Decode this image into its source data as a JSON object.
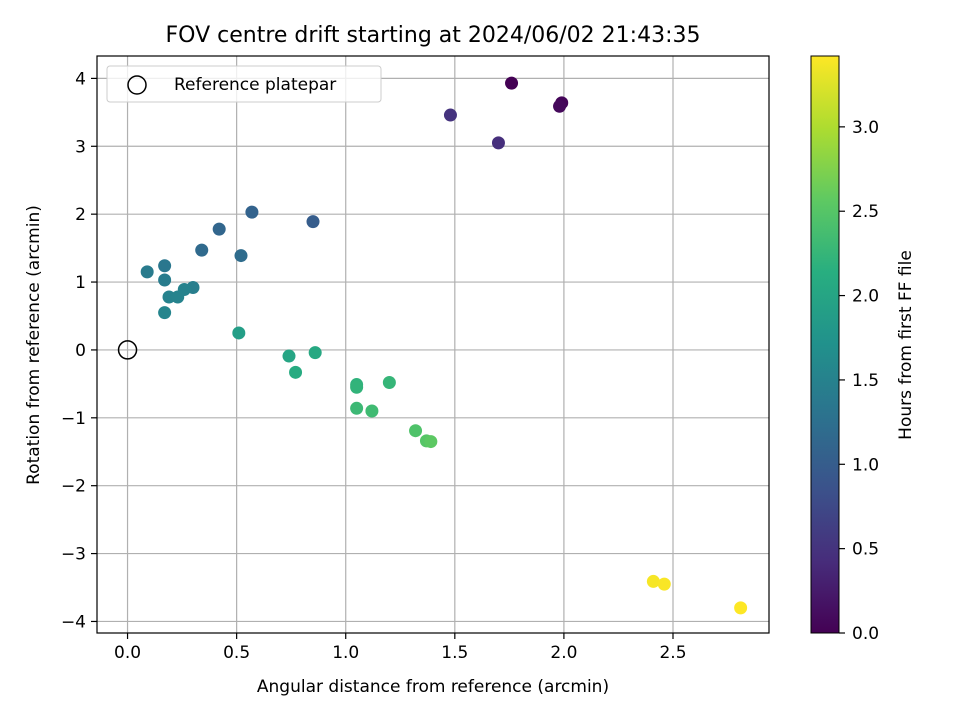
{
  "chart_data": {
    "type": "scatter",
    "title": "FOV centre drift starting at 2024/06/02 21:43:35",
    "xlabel": "Angular distance from reference (arcmin)",
    "ylabel": "Rotation from reference (arcmin)",
    "xlim": [
      -0.14,
      2.94
    ],
    "ylim": [
      -4.17,
      4.33
    ],
    "xticks": [
      0.0,
      0.5,
      1.0,
      1.5,
      2.0,
      2.5
    ],
    "xtick_labels": [
      "0.0",
      "0.5",
      "1.0",
      "1.5",
      "2.0",
      "2.5"
    ],
    "yticks": [
      -4,
      -3,
      -2,
      -1,
      0,
      1,
      2,
      3,
      4
    ],
    "ytick_labels": [
      "−4",
      "−3",
      "−2",
      "−1",
      "0",
      "1",
      "2",
      "3",
      "4"
    ],
    "grid": true,
    "legend": {
      "position": "top-left",
      "entries": [
        {
          "label": "Reference platepar",
          "marker": "open-circle"
        }
      ]
    },
    "reference_point": {
      "x": 0.0,
      "y": 0.0
    },
    "colorbar": {
      "label": "Hours from first FF file",
      "colormap": "viridis",
      "range": [
        0.0,
        3.42
      ],
      "ticks": [
        0.0,
        0.5,
        1.0,
        1.5,
        2.0,
        2.5,
        3.0
      ],
      "tick_labels": [
        "0.0",
        "0.5",
        "1.0",
        "1.5",
        "2.0",
        "2.5",
        "3.0"
      ]
    },
    "points": [
      {
        "x": 1.76,
        "y": 3.93,
        "t": 0.0
      },
      {
        "x": 1.99,
        "y": 3.64,
        "t": 0.04
      },
      {
        "x": 1.98,
        "y": 3.59,
        "t": 0.08
      },
      {
        "x": 1.7,
        "y": 3.05,
        "t": 0.45
      },
      {
        "x": 1.48,
        "y": 3.46,
        "t": 0.5
      },
      {
        "x": 0.85,
        "y": 1.89,
        "t": 1.0
      },
      {
        "x": 0.57,
        "y": 2.03,
        "t": 1.08
      },
      {
        "x": 0.42,
        "y": 1.78,
        "t": 1.12
      },
      {
        "x": 0.34,
        "y": 1.47,
        "t": 1.17
      },
      {
        "x": 0.52,
        "y": 1.39,
        "t": 1.2
      },
      {
        "x": 0.17,
        "y": 1.24,
        "t": 1.35
      },
      {
        "x": 0.09,
        "y": 1.15,
        "t": 1.4
      },
      {
        "x": 0.17,
        "y": 1.03,
        "t": 1.42
      },
      {
        "x": 0.3,
        "y": 0.92,
        "t": 1.45
      },
      {
        "x": 0.26,
        "y": 0.89,
        "t": 1.5
      },
      {
        "x": 0.19,
        "y": 0.78,
        "t": 1.5
      },
      {
        "x": 0.23,
        "y": 0.78,
        "t": 1.52
      },
      {
        "x": 0.17,
        "y": 0.55,
        "t": 1.55
      },
      {
        "x": 0.51,
        "y": 0.25,
        "t": 1.9
      },
      {
        "x": 0.74,
        "y": -0.09,
        "t": 2.0
      },
      {
        "x": 0.86,
        "y": -0.04,
        "t": 2.05
      },
      {
        "x": 0.77,
        "y": -0.33,
        "t": 2.1
      },
      {
        "x": 1.05,
        "y": -0.51,
        "t": 2.2
      },
      {
        "x": 1.05,
        "y": -0.55,
        "t": 2.22
      },
      {
        "x": 1.2,
        "y": -0.48,
        "t": 2.25
      },
      {
        "x": 1.05,
        "y": -0.86,
        "t": 2.3
      },
      {
        "x": 1.12,
        "y": -0.9,
        "t": 2.33
      },
      {
        "x": 1.32,
        "y": -1.19,
        "t": 2.45
      },
      {
        "x": 1.37,
        "y": -1.34,
        "t": 2.5
      },
      {
        "x": 1.39,
        "y": -1.35,
        "t": 2.55
      },
      {
        "x": 2.41,
        "y": -3.41,
        "t": 3.38
      },
      {
        "x": 2.46,
        "y": -3.45,
        "t": 3.4
      },
      {
        "x": 2.81,
        "y": -3.8,
        "t": 3.42
      }
    ]
  }
}
